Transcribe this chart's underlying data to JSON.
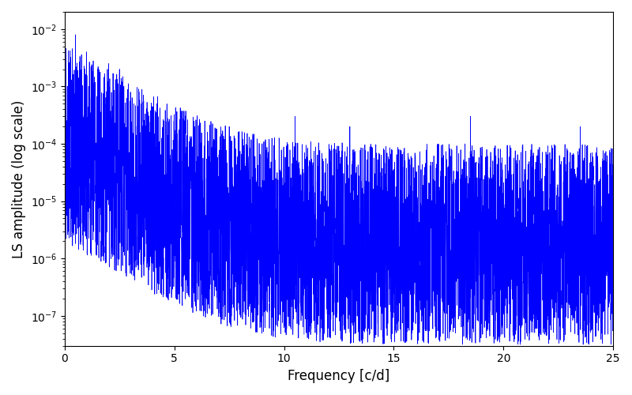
{
  "title": "",
  "xlabel": "Frequency [c/d]",
  "ylabel": "LS amplitude (log scale)",
  "xlim": [
    0,
    25
  ],
  "ymin": 3e-08,
  "ymax": 0.02,
  "xticks": [
    0,
    5,
    10,
    15,
    20,
    25
  ],
  "line_color": "#0000ff",
  "background_color": "#ffffff",
  "figsize": [
    8.0,
    5.0
  ],
  "dpi": 100,
  "n_points": 5000,
  "freq_max": 25.0,
  "seed": 42
}
